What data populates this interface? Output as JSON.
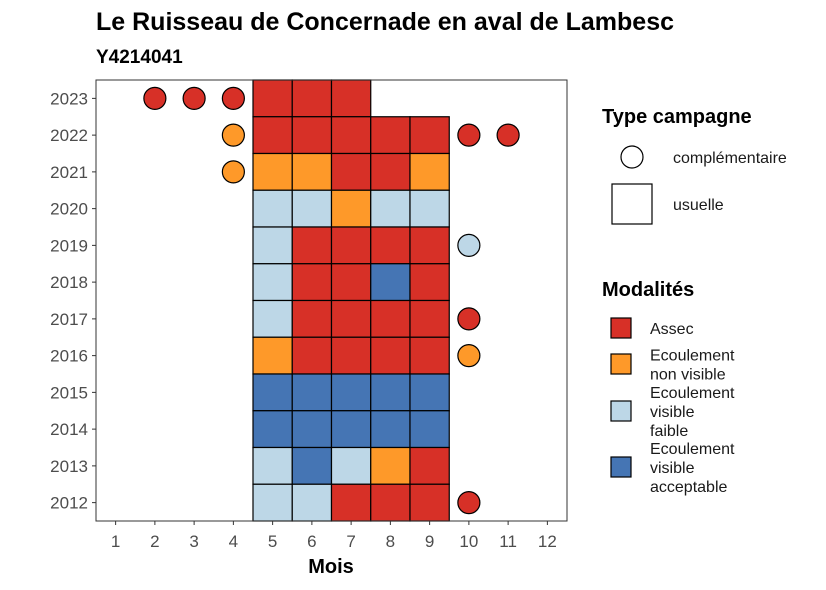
{
  "chart_data": {
    "type": "heatmap",
    "title": "Le Ruisseau de Concernade en aval de Lambesc",
    "subtitle": "Y4214041",
    "xlabel": "Mois",
    "ylabel": "",
    "x_ticks": [
      "1",
      "2",
      "3",
      "4",
      "5",
      "6",
      "7",
      "8",
      "9",
      "10",
      "11",
      "12"
    ],
    "y_ticks": [
      "2012",
      "2013",
      "2014",
      "2015",
      "2016",
      "2017",
      "2018",
      "2019",
      "2020",
      "2021",
      "2022",
      "2023"
    ],
    "xlim": [
      0.5,
      12.5
    ],
    "ylim": [
      2011.5,
      2023.5
    ],
    "colors": {
      "Assec": "#d73027",
      "Ecoulement non visible": "#fe9929",
      "Ecoulement visible faible": "#bdd7e7",
      "Ecoulement visible acceptable": "#4575b4"
    },
    "legend_type": {
      "title": "Type campagne",
      "entries": [
        {
          "label": "complémentaire",
          "shape": "circle"
        },
        {
          "label": "usuelle",
          "shape": "square"
        }
      ]
    },
    "legend_modalites": {
      "title": "Modalités",
      "entries": [
        {
          "key": "Assec",
          "lines": [
            "Assec"
          ]
        },
        {
          "key": "Ecoulement non visible",
          "lines": [
            "Ecoulement",
            "non visible"
          ]
        },
        {
          "key": "Ecoulement visible faible",
          "lines": [
            "Ecoulement",
            "visible",
            "faible"
          ]
        },
        {
          "key": "Ecoulement visible acceptable",
          "lines": [
            "Ecoulement",
            "visible",
            "acceptable"
          ]
        }
      ]
    },
    "usuelle": [
      {
        "year": 2023,
        "month": 5,
        "modalite": "Assec"
      },
      {
        "year": 2023,
        "month": 6,
        "modalite": "Assec"
      },
      {
        "year": 2023,
        "month": 7,
        "modalite": "Assec"
      },
      {
        "year": 2022,
        "month": 5,
        "modalite": "Assec"
      },
      {
        "year": 2022,
        "month": 6,
        "modalite": "Assec"
      },
      {
        "year": 2022,
        "month": 7,
        "modalite": "Assec"
      },
      {
        "year": 2022,
        "month": 8,
        "modalite": "Assec"
      },
      {
        "year": 2022,
        "month": 9,
        "modalite": "Assec"
      },
      {
        "year": 2021,
        "month": 5,
        "modalite": "Ecoulement non visible"
      },
      {
        "year": 2021,
        "month": 6,
        "modalite": "Ecoulement non visible"
      },
      {
        "year": 2021,
        "month": 7,
        "modalite": "Assec"
      },
      {
        "year": 2021,
        "month": 8,
        "modalite": "Assec"
      },
      {
        "year": 2021,
        "month": 9,
        "modalite": "Ecoulement non visible"
      },
      {
        "year": 2020,
        "month": 5,
        "modalite": "Ecoulement visible faible"
      },
      {
        "year": 2020,
        "month": 6,
        "modalite": "Ecoulement visible faible"
      },
      {
        "year": 2020,
        "month": 7,
        "modalite": "Ecoulement non visible"
      },
      {
        "year": 2020,
        "month": 8,
        "modalite": "Ecoulement visible faible"
      },
      {
        "year": 2020,
        "month": 9,
        "modalite": "Ecoulement visible faible"
      },
      {
        "year": 2019,
        "month": 5,
        "modalite": "Ecoulement visible faible"
      },
      {
        "year": 2019,
        "month": 6,
        "modalite": "Assec"
      },
      {
        "year": 2019,
        "month": 7,
        "modalite": "Assec"
      },
      {
        "year": 2019,
        "month": 8,
        "modalite": "Assec"
      },
      {
        "year": 2019,
        "month": 9,
        "modalite": "Assec"
      },
      {
        "year": 2018,
        "month": 5,
        "modalite": "Ecoulement visible faible"
      },
      {
        "year": 2018,
        "month": 6,
        "modalite": "Assec"
      },
      {
        "year": 2018,
        "month": 7,
        "modalite": "Assec"
      },
      {
        "year": 2018,
        "month": 8,
        "modalite": "Ecoulement visible acceptable"
      },
      {
        "year": 2018,
        "month": 9,
        "modalite": "Assec"
      },
      {
        "year": 2017,
        "month": 5,
        "modalite": "Ecoulement visible faible"
      },
      {
        "year": 2017,
        "month": 6,
        "modalite": "Assec"
      },
      {
        "year": 2017,
        "month": 7,
        "modalite": "Assec"
      },
      {
        "year": 2017,
        "month": 8,
        "modalite": "Assec"
      },
      {
        "year": 2017,
        "month": 9,
        "modalite": "Assec"
      },
      {
        "year": 2016,
        "month": 5,
        "modalite": "Ecoulement non visible"
      },
      {
        "year": 2016,
        "month": 6,
        "modalite": "Assec"
      },
      {
        "year": 2016,
        "month": 7,
        "modalite": "Assec"
      },
      {
        "year": 2016,
        "month": 8,
        "modalite": "Assec"
      },
      {
        "year": 2016,
        "month": 9,
        "modalite": "Assec"
      },
      {
        "year": 2015,
        "month": 5,
        "modalite": "Ecoulement visible acceptable"
      },
      {
        "year": 2015,
        "month": 6,
        "modalite": "Ecoulement visible acceptable"
      },
      {
        "year": 2015,
        "month": 7,
        "modalite": "Ecoulement visible acceptable"
      },
      {
        "year": 2015,
        "month": 8,
        "modalite": "Ecoulement visible acceptable"
      },
      {
        "year": 2015,
        "month": 9,
        "modalite": "Ecoulement visible acceptable"
      },
      {
        "year": 2014,
        "month": 5,
        "modalite": "Ecoulement visible acceptable"
      },
      {
        "year": 2014,
        "month": 6,
        "modalite": "Ecoulement visible acceptable"
      },
      {
        "year": 2014,
        "month": 7,
        "modalite": "Ecoulement visible acceptable"
      },
      {
        "year": 2014,
        "month": 8,
        "modalite": "Ecoulement visible acceptable"
      },
      {
        "year": 2014,
        "month": 9,
        "modalite": "Ecoulement visible acceptable"
      },
      {
        "year": 2013,
        "month": 5,
        "modalite": "Ecoulement visible faible"
      },
      {
        "year": 2013,
        "month": 6,
        "modalite": "Ecoulement visible acceptable"
      },
      {
        "year": 2013,
        "month": 7,
        "modalite": "Ecoulement visible faible"
      },
      {
        "year": 2013,
        "month": 8,
        "modalite": "Ecoulement non visible"
      },
      {
        "year": 2013,
        "month": 9,
        "modalite": "Assec"
      },
      {
        "year": 2012,
        "month": 5,
        "modalite": "Ecoulement visible faible"
      },
      {
        "year": 2012,
        "month": 6,
        "modalite": "Ecoulement visible faible"
      },
      {
        "year": 2012,
        "month": 7,
        "modalite": "Assec"
      },
      {
        "year": 2012,
        "month": 8,
        "modalite": "Assec"
      },
      {
        "year": 2012,
        "month": 9,
        "modalite": "Assec"
      }
    ],
    "complementaire": [
      {
        "year": 2023,
        "month": 2,
        "modalite": "Assec"
      },
      {
        "year": 2023,
        "month": 3,
        "modalite": "Assec"
      },
      {
        "year": 2023,
        "month": 4,
        "modalite": "Assec"
      },
      {
        "year": 2022,
        "month": 4,
        "modalite": "Ecoulement non visible"
      },
      {
        "year": 2022,
        "month": 10,
        "modalite": "Assec"
      },
      {
        "year": 2022,
        "month": 11,
        "modalite": "Assec"
      },
      {
        "year": 2021,
        "month": 4,
        "modalite": "Ecoulement non visible"
      },
      {
        "year": 2019,
        "month": 10,
        "modalite": "Ecoulement visible faible"
      },
      {
        "year": 2017,
        "month": 10,
        "modalite": "Assec"
      },
      {
        "year": 2016,
        "month": 10,
        "modalite": "Ecoulement non visible"
      },
      {
        "year": 2012,
        "month": 10,
        "modalite": "Assec"
      }
    ]
  }
}
